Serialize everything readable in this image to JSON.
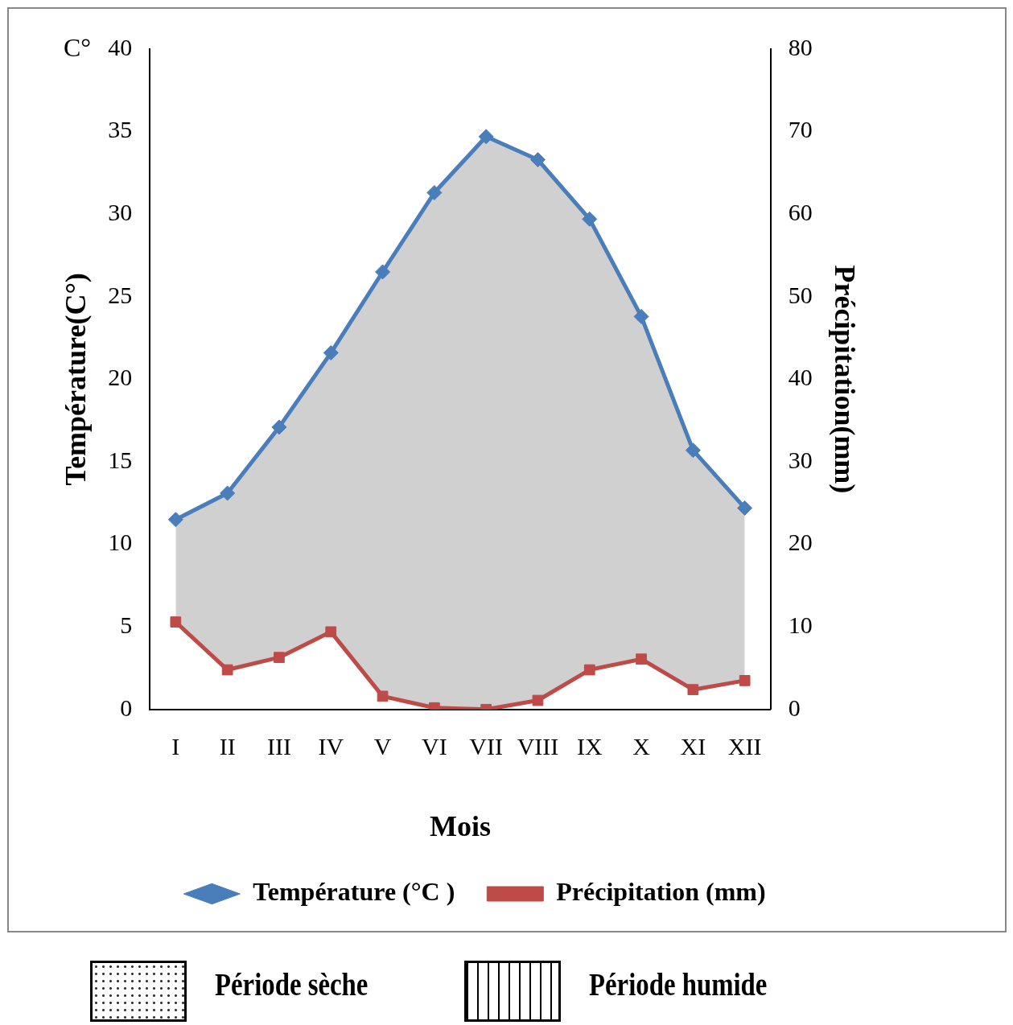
{
  "chart_data": {
    "type": "line",
    "xlabel": "Mois",
    "ylabel": "Température(C°)",
    "y2label": "Précipitation(mm)",
    "categories": [
      "I",
      "II",
      "III",
      "IV",
      "V",
      "VI",
      "VII",
      "VIII",
      "IX",
      "X",
      "XI",
      "XII"
    ],
    "series": [
      {
        "name": "Température (°C )",
        "color": "#4a7ebb",
        "marker": "diamond",
        "values": [
          11.5,
          13.1,
          17.1,
          21.6,
          26.5,
          31.3,
          34.7,
          33.3,
          29.7,
          23.8,
          15.7,
          12.2
        ],
        "lower": [
          5.3,
          2.4,
          3.15,
          4.7,
          0.8,
          0.1,
          0,
          0.55,
          2.4,
          3.05,
          1.2,
          1.75
        ],
        "upper": [
          11.5,
          13.1,
          17.1,
          21.6,
          26.5,
          31.3,
          34.7,
          33.3,
          29.7,
          23.8,
          15.7,
          12.2
        ]
      },
      {
        "name": "Précipitation (mm)",
        "color": "#be4b48",
        "marker": "square",
        "axis": "y2",
        "values": [
          10.6,
          4.8,
          6.3,
          9.4,
          1.6,
          0.2,
          0,
          1.1,
          4.8,
          6.1,
          2.4,
          3.5
        ]
      }
    ],
    "ylim": [
      0,
      40
    ],
    "yticks": [
      0,
      5,
      10,
      15,
      20,
      25,
      30,
      35,
      40
    ],
    "y2lim": [
      0,
      80
    ],
    "y2ticks": [
      0,
      10,
      20,
      30,
      40,
      50,
      60,
      70,
      80
    ],
    "grid": false,
    "legend": "bottom",
    "line_style": "solid",
    "annotations": [
      "C°",
      "Période sèche",
      "Période humide"
    ]
  }
}
